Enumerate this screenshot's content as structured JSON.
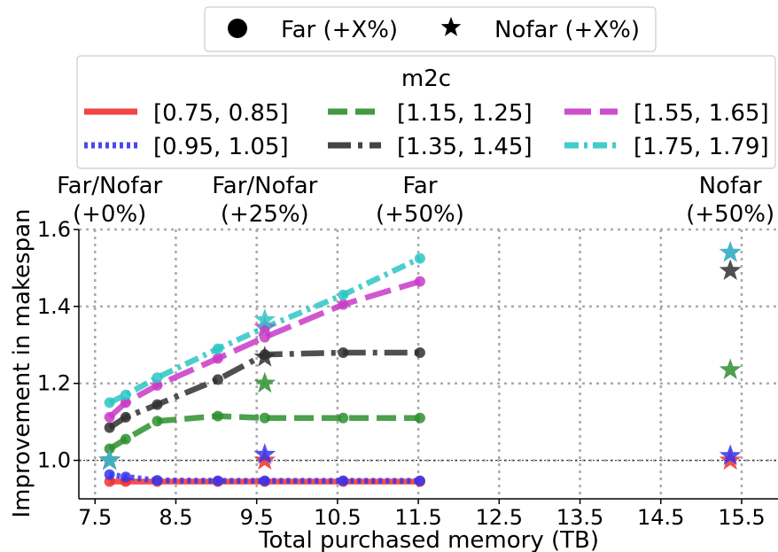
{
  "chart_data": {
    "type": "line",
    "xlabel": "Total purchased memory (TB)",
    "ylabel": "Improvement in makespan",
    "xlim": [
      7.3,
      15.95
    ],
    "ylim": [
      0.9,
      1.6
    ],
    "xticks": [
      "7.5",
      "8.5",
      "9.5",
      "10.5",
      "11.5",
      "12.5",
      "13.5",
      "14.5",
      "15.5"
    ],
    "xtick_values": [
      7.5,
      8.5,
      9.5,
      10.5,
      11.5,
      12.5,
      13.5,
      14.5,
      15.5
    ],
    "yticks": [
      "1.0",
      "1.2",
      "1.4",
      "1.6"
    ],
    "ytick_values": [
      1.0,
      1.2,
      1.4,
      1.6
    ],
    "grid": true,
    "reference_line": 1.0,
    "top_annotations": [
      {
        "x": 7.68,
        "line1": "Far/Nofar",
        "line2": "(+0%)"
      },
      {
        "x": 9.6,
        "line1": "Far/Nofar",
        "line2": "(+25%)"
      },
      {
        "x": 11.52,
        "line1": "Far",
        "line2": "(+50%)"
      },
      {
        "x": 15.36,
        "line1": "Nofar",
        "line2": "(+50%)"
      }
    ],
    "marker_legend": {
      "placement": "top-center",
      "entries": [
        {
          "marker": "circle",
          "label": "Far (+X%)"
        },
        {
          "marker": "star",
          "label": "Nofar (+X%)"
        }
      ]
    },
    "series_legend": {
      "title": "m2c",
      "placement": "top",
      "columns": 3
    },
    "series": [
      {
        "name": "[0.75, 0.85]",
        "color": "#f03030",
        "dash": "solid",
        "x": [
          7.68,
          7.88,
          8.27,
          9.02,
          9.6,
          10.57,
          11.52
        ],
        "y": [
          0.945,
          0.945,
          0.945,
          0.945,
          0.945,
          0.945,
          0.945
        ],
        "stars": [
          {
            "x": 7.68,
            "y": 1.0
          },
          {
            "x": 9.6,
            "y": 1.0
          },
          {
            "x": 15.36,
            "y": 1.0
          }
        ]
      },
      {
        "name": "[0.95, 1.05]",
        "color": "#3535ee",
        "dash": "dotted",
        "x": [
          7.68,
          7.88,
          8.27,
          9.02,
          9.6,
          10.57,
          11.52
        ],
        "y": [
          0.963,
          0.957,
          0.948,
          0.947,
          0.947,
          0.947,
          0.947
        ],
        "stars": [
          {
            "x": 7.68,
            "y": 1.0
          },
          {
            "x": 9.6,
            "y": 1.015
          },
          {
            "x": 15.36,
            "y": 1.012
          }
        ]
      },
      {
        "name": "[1.15, 1.25]",
        "color": "#2e8f2e",
        "dash": "dashed",
        "x": [
          7.68,
          7.88,
          8.27,
          9.02,
          9.6,
          10.57,
          11.52
        ],
        "y": [
          1.03,
          1.055,
          1.102,
          1.115,
          1.11,
          1.11,
          1.11
        ],
        "stars": [
          {
            "x": 7.68,
            "y": 1.0
          },
          {
            "x": 9.6,
            "y": 1.2
          },
          {
            "x": 15.36,
            "y": 1.235
          }
        ]
      },
      {
        "name": "[1.35, 1.45]",
        "color": "#303030",
        "dash": "dashdot",
        "x": [
          7.68,
          7.88,
          8.27,
          9.02,
          9.6,
          10.57,
          11.52
        ],
        "y": [
          1.085,
          1.112,
          1.145,
          1.21,
          1.275,
          1.28,
          1.28
        ],
        "stars": [
          {
            "x": 7.68,
            "y": 1.0
          },
          {
            "x": 9.6,
            "y": 1.268
          },
          {
            "x": 15.36,
            "y": 1.493
          }
        ]
      },
      {
        "name": "[1.55, 1.65]",
        "color": "#c93ac9",
        "dash": "longdash",
        "x": [
          7.68,
          7.88,
          8.27,
          9.02,
          9.6,
          10.57,
          11.52
        ],
        "y": [
          1.112,
          1.15,
          1.195,
          1.265,
          1.32,
          1.405,
          1.465
        ],
        "stars": [
          {
            "x": 7.68,
            "y": 1.0
          },
          {
            "x": 9.6,
            "y": 1.345
          },
          {
            "x": 15.36,
            "y": 1.54
          }
        ]
      },
      {
        "name": "[1.75, 1.79]",
        "color": "#2ec6c6",
        "dash": "dashdotfine",
        "x": [
          7.68,
          7.88,
          8.27,
          9.02,
          9.6,
          10.57,
          11.52
        ],
        "y": [
          1.15,
          1.17,
          1.215,
          1.29,
          1.345,
          1.43,
          1.525
        ],
        "stars": [
          {
            "x": 7.68,
            "y": 1.0
          },
          {
            "x": 9.6,
            "y": 1.365
          },
          {
            "x": 15.36,
            "y": 1.54
          }
        ]
      }
    ]
  }
}
